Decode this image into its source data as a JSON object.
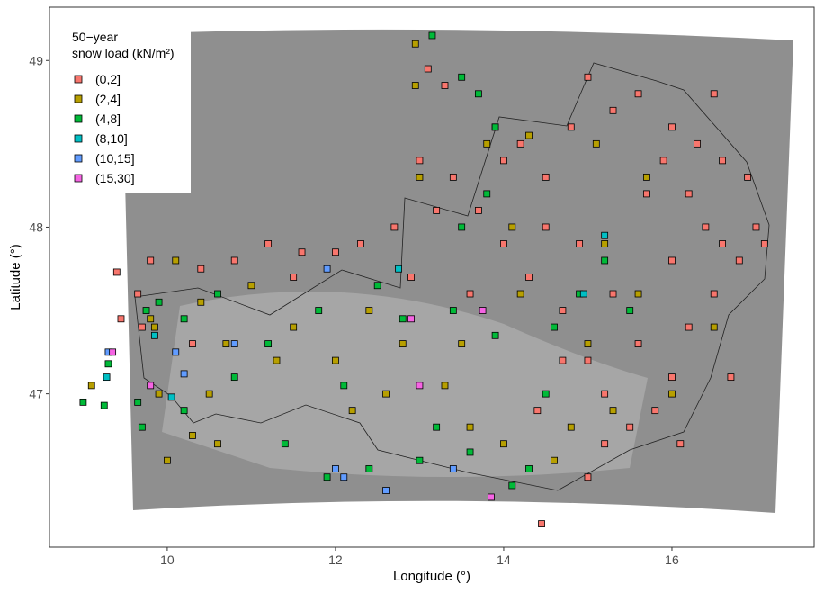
{
  "chart_data": {
    "type": "scatter",
    "x_label": "Longitude (°)",
    "y_label": "Latitude (°)",
    "xlim": [
      8.6,
      17.69
    ],
    "ylim": [
      46.08,
      49.32
    ],
    "xticks": [
      10,
      12,
      14,
      16
    ],
    "yticks": [
      47,
      48,
      49
    ],
    "legend_title": [
      "50−year",
      "snow load (kN/m²)"
    ],
    "legend": "top-left",
    "series": [
      {
        "name": "(0,2]",
        "color": "#F8766D",
        "x": [
          14.45,
          13.1,
          13.3,
          14.2,
          14.5,
          14.8,
          15.0,
          15.3,
          15.6,
          16.0,
          16.3,
          16.6,
          16.9,
          17.0,
          16.8,
          16.5,
          16.2,
          16.0,
          15.8,
          15.5,
          15.2,
          15.0,
          14.7,
          14.3,
          14.0,
          13.7,
          13.4,
          13.0,
          12.7,
          12.3,
          12.0,
          11.6,
          11.2,
          10.8,
          10.4,
          9.8,
          9.65,
          9.7,
          9.4,
          9.45,
          15.7,
          15.3,
          16.4,
          16.0,
          15.6,
          14.9,
          14.5,
          13.9,
          14.7,
          15.2,
          14.4,
          13.6,
          12.9,
          16.7,
          16.1,
          15.0,
          17.1,
          16.5,
          14.0,
          13.2,
          11.5,
          10.3,
          15.9,
          16.2,
          16.6
        ],
        "y": [
          46.22,
          48.95,
          48.85,
          48.5,
          48.3,
          48.6,
          48.9,
          48.7,
          48.8,
          48.6,
          48.5,
          48.4,
          48.3,
          48.0,
          47.8,
          47.6,
          47.4,
          47.1,
          46.9,
          46.8,
          47.0,
          47.2,
          47.5,
          47.7,
          47.9,
          48.1,
          48.3,
          48.4,
          48.0,
          47.9,
          47.85,
          47.85,
          47.9,
          47.8,
          47.75,
          47.8,
          47.6,
          47.4,
          47.73,
          47.45,
          48.2,
          47.6,
          48.0,
          47.8,
          47.3,
          47.9,
          48.0,
          48.6,
          47.2,
          46.7,
          46.9,
          47.6,
          47.7,
          47.1,
          46.7,
          46.5,
          47.9,
          48.8,
          48.4,
          48.1,
          47.7,
          47.3,
          48.4,
          48.2,
          47.9
        ]
      },
      {
        "name": "(2,4]",
        "color": "#B79F00",
        "x": [
          12.95,
          12.95,
          14.3,
          13.8,
          15.1,
          15.7,
          10.1,
          10.4,
          10.7,
          11.0,
          11.5,
          12.0,
          12.4,
          12.8,
          13.3,
          13.6,
          14.0,
          14.6,
          15.0,
          15.3,
          14.8,
          10.0,
          10.3,
          10.6,
          9.9,
          9.1,
          11.3,
          12.2,
          13.5,
          14.2,
          15.2,
          15.6,
          16.0,
          16.5,
          14.1,
          9.8,
          9.85,
          10.5,
          12.6,
          13.0
        ],
        "y": [
          49.1,
          48.85,
          48.55,
          48.5,
          48.5,
          48.3,
          47.8,
          47.55,
          47.3,
          47.65,
          47.4,
          47.2,
          47.5,
          47.3,
          47.05,
          46.8,
          46.7,
          46.6,
          47.3,
          46.9,
          46.8,
          46.6,
          46.75,
          46.7,
          47.0,
          47.05,
          47.2,
          46.9,
          47.3,
          47.6,
          47.9,
          47.6,
          47.0,
          47.4,
          48.0,
          47.45,
          47.4,
          47.0,
          47.0,
          48.3
        ]
      },
      {
        "name": "(4,8]",
        "color": "#00BA38",
        "x": [
          13.15,
          13.5,
          13.7,
          13.9,
          12.5,
          11.8,
          11.2,
          10.8,
          10.2,
          9.9,
          9.75,
          9.3,
          9.25,
          9.0,
          9.65,
          9.7,
          10.2,
          11.9,
          12.4,
          13.0,
          13.6,
          14.1,
          14.3,
          13.9,
          13.4,
          12.8,
          14.6,
          14.9,
          15.5,
          15.2,
          13.5,
          14.5,
          13.2,
          11.4,
          10.6,
          12.1,
          13.8
        ],
        "y": [
          49.15,
          48.9,
          48.8,
          48.6,
          47.65,
          47.5,
          47.3,
          47.1,
          47.45,
          47.55,
          47.5,
          47.18,
          46.93,
          46.95,
          46.95,
          46.8,
          46.9,
          46.5,
          46.55,
          46.6,
          46.65,
          46.45,
          46.55,
          47.35,
          47.5,
          47.45,
          47.4,
          47.6,
          47.5,
          47.8,
          48.0,
          47.0,
          46.8,
          46.7,
          47.6,
          47.05,
          48.2
        ]
      },
      {
        "name": "(8,10]",
        "color": "#00BFC4",
        "x": [
          9.28,
          9.85,
          10.05,
          15.2,
          14.95,
          12.75
        ],
        "y": [
          47.1,
          47.35,
          46.98,
          47.95,
          47.6,
          47.75
        ]
      },
      {
        "name": "(10,15]",
        "color": "#619CFF",
        "x": [
          9.3,
          10.1,
          10.2,
          11.9,
          12.0,
          12.1,
          12.6,
          13.4,
          10.8
        ],
        "y": [
          47.25,
          47.25,
          47.12,
          47.75,
          46.55,
          46.5,
          46.42,
          46.55,
          47.3
        ]
      },
      {
        "name": "(15,30]",
        "color": "#F564E3",
        "x": [
          9.35,
          9.8,
          13.75,
          13.0,
          12.9,
          13.85
        ],
        "y": [
          47.25,
          47.05,
          47.5,
          47.05,
          47.45,
          46.38
        ]
      }
    ]
  }
}
